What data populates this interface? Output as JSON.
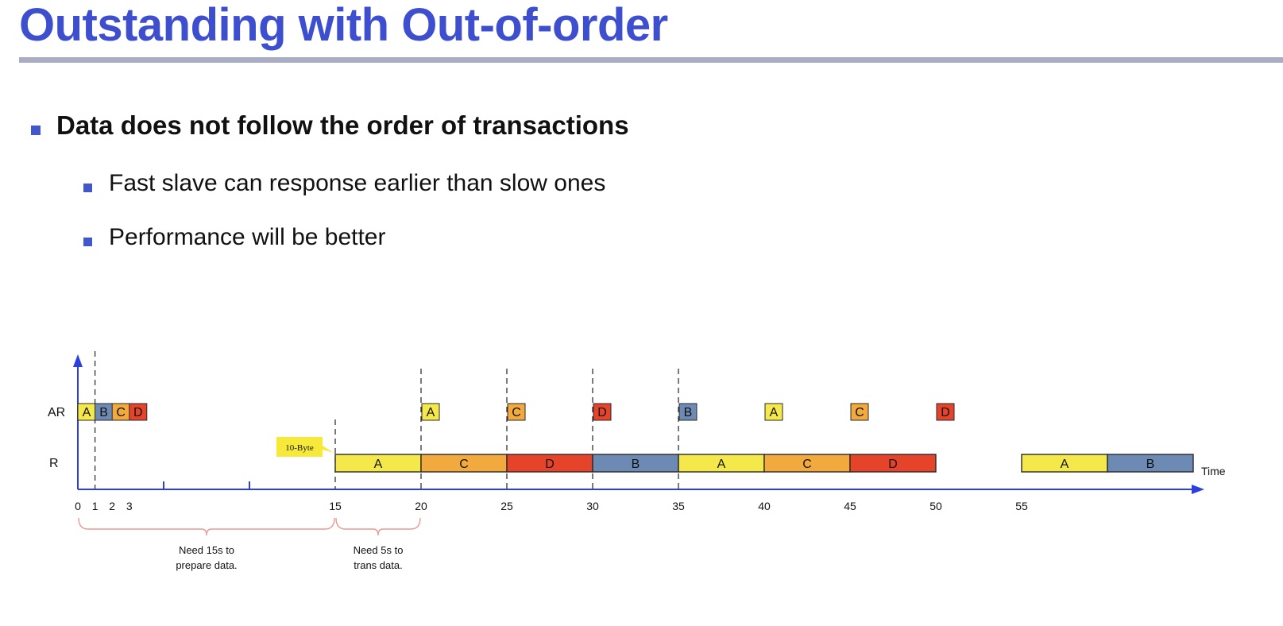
{
  "slide": {
    "title": "Outstanding with Out-of-order"
  },
  "bullets": {
    "main": "Data does not follow the order of transactions",
    "sub": [
      "Fast slave can response earlier than slow ones",
      "Performance will be better"
    ]
  },
  "colors": {
    "title": "#3d4fce",
    "bullet": "#4257c9",
    "axis": "#2b3fe0",
    "A": "#f5e84a",
    "B": "#6d8ab5",
    "C": "#f2aa3e",
    "D": "#e5432a",
    "brace": "#e89a94",
    "tooltip": "#f7e93a"
  },
  "timeline": {
    "row_labels": {
      "ar": "AR",
      "r": "R"
    },
    "axis_label": "Time",
    "ticks": [
      "0",
      "1",
      "2",
      "3",
      "15",
      "20",
      "25",
      "30",
      "35",
      "40",
      "45",
      "50",
      "55"
    ],
    "ar_boxes": [
      {
        "letter": "A",
        "t": 0
      },
      {
        "letter": "B",
        "t": 1
      },
      {
        "letter": "C",
        "t": 2
      },
      {
        "letter": "D",
        "t": 3
      },
      {
        "letter": "A",
        "t": 20
      },
      {
        "letter": "C",
        "t": 25
      },
      {
        "letter": "D",
        "t": 30
      },
      {
        "letter": "B",
        "t": 35
      },
      {
        "letter": "A",
        "t": 40
      },
      {
        "letter": "C",
        "t": 45
      },
      {
        "letter": "D",
        "t": 50
      }
    ],
    "r_segments": [
      {
        "letter": "A",
        "start": 15,
        "end": 20
      },
      {
        "letter": "C",
        "start": 20,
        "end": 25
      },
      {
        "letter": "D",
        "start": 25,
        "end": 30
      },
      {
        "letter": "B",
        "start": 30,
        "end": 35
      },
      {
        "letter": "A",
        "start": 35,
        "end": 40
      },
      {
        "letter": "C",
        "start": 40,
        "end": 45
      },
      {
        "letter": "D",
        "start": 45,
        "end": 50
      },
      {
        "letter": "A",
        "start": 55,
        "end": 60
      },
      {
        "letter": "B",
        "start": 60,
        "end": 65
      }
    ],
    "markers": [
      1,
      15,
      20,
      25,
      30,
      35
    ],
    "minor_ticks": [
      5,
      10
    ],
    "callout": "10-Byte",
    "annotations": [
      {
        "line1": "Need 15s to",
        "line2": "prepare data.",
        "start": 0,
        "end": 15
      },
      {
        "line1": "Need 5s to",
        "line2": "trans data.",
        "start": 15,
        "end": 20
      }
    ]
  }
}
